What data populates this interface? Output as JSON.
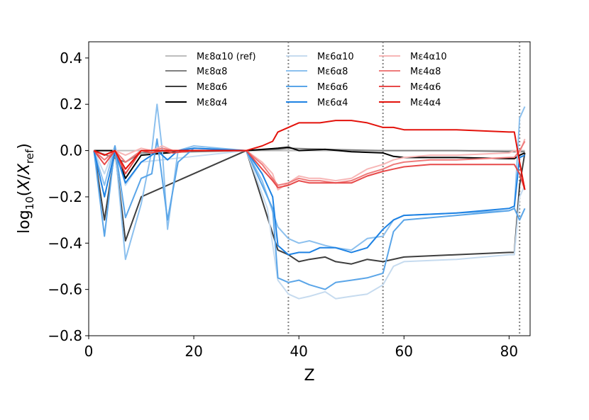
{
  "chart_data": {
    "type": "line",
    "xlabel": "Z",
    "ylabel_parts": [
      "log",
      "10",
      "(",
      "X",
      "/",
      "X",
      "ref",
      ")"
    ],
    "xlim": [
      0,
      84
    ],
    "ylim": [
      -0.8,
      0.47
    ],
    "xticks": [
      0,
      20,
      40,
      60,
      80
    ],
    "xtick_labels": [
      "0",
      "20",
      "40",
      "60",
      "80"
    ],
    "yticks": [
      0.4,
      0.2,
      0.0,
      -0.2,
      -0.4,
      -0.6,
      -0.8
    ],
    "ytick_labels": [
      "0.4",
      "0.2",
      "0.0",
      "−0.2",
      "−0.4",
      "−0.6",
      "−0.8"
    ],
    "vlines": [
      38,
      56,
      82
    ],
    "legend_location": "top",
    "series": [
      {
        "name": "Mε8α10 (ref)",
        "color": "#bdbdbd",
        "x": [
          1,
          35,
          38,
          56,
          82,
          83
        ],
        "y": [
          0.0,
          0.0,
          0.0,
          0.0,
          0.0,
          0.0
        ]
      },
      {
        "name": "Mε8α8",
        "color": "#808080",
        "x": [
          1,
          7,
          10,
          30,
          36,
          38,
          45,
          56,
          70,
          81,
          83
        ],
        "y": [
          0.0,
          -0.05,
          -0.01,
          0.0,
          0.005,
          0.01,
          0.005,
          0.0,
          0.0,
          -0.005,
          -0.005
        ]
      },
      {
        "name": "Mε8α6",
        "color": "#3f3f3f",
        "x": [
          1,
          3,
          5,
          7,
          10,
          30,
          36,
          38,
          40,
          42,
          45,
          47,
          50,
          53,
          56,
          60,
          70,
          80,
          81,
          82,
          83
        ],
        "y": [
          0.0,
          -0.3,
          0.0,
          -0.39,
          -0.2,
          0.0,
          -0.43,
          -0.45,
          -0.48,
          -0.47,
          -0.46,
          -0.48,
          -0.49,
          -0.47,
          -0.48,
          -0.46,
          -0.45,
          -0.44,
          -0.44,
          -0.15,
          -0.01
        ]
      },
      {
        "name": "Mε8α4",
        "color": "#000000",
        "x": [
          1,
          5,
          7,
          10,
          20,
          30,
          36,
          38,
          40,
          45,
          50,
          56,
          58,
          60,
          70,
          80,
          81,
          82,
          83
        ],
        "y": [
          0.0,
          0.0,
          -0.12,
          -0.02,
          0.0,
          0.0,
          0.01,
          0.015,
          0.0,
          0.005,
          -0.005,
          -0.01,
          -0.025,
          -0.03,
          -0.03,
          -0.035,
          -0.035,
          -0.02,
          -0.01
        ]
      },
      {
        "name": "Mε6α10",
        "color": "#c6dbef",
        "x": [
          1,
          3,
          5,
          7,
          10,
          30,
          34,
          36,
          37,
          38,
          40,
          42,
          45,
          47,
          50,
          53,
          56,
          58,
          60,
          70,
          80,
          81,
          82,
          83
        ],
        "y": [
          0.0,
          -0.1,
          0.02,
          -0.15,
          -0.05,
          0.0,
          -0.25,
          -0.56,
          -0.59,
          -0.62,
          -0.64,
          -0.63,
          -0.61,
          -0.64,
          -0.63,
          -0.62,
          -0.58,
          -0.5,
          -0.48,
          -0.47,
          -0.45,
          -0.45,
          -0.2,
          -0.15
        ]
      },
      {
        "name": "Mε6α8",
        "color": "#8cc0ee",
        "x": [
          1,
          3,
          5,
          7,
          10,
          12,
          13,
          14,
          15,
          17,
          20,
          30,
          33,
          36,
          38,
          40,
          42,
          45,
          47,
          50,
          53,
          56,
          58,
          60,
          70,
          80,
          81,
          82,
          83
        ],
        "y": [
          0.0,
          -0.15,
          0.02,
          -0.47,
          -0.23,
          0.0,
          0.2,
          0.0,
          -0.34,
          0.0,
          0.02,
          0.0,
          -0.13,
          -0.33,
          -0.38,
          -0.4,
          -0.39,
          -0.41,
          -0.42,
          -0.43,
          -0.38,
          -0.37,
          -0.3,
          -0.28,
          -0.27,
          -0.26,
          -0.25,
          0.14,
          0.19
        ]
      },
      {
        "name": "Mε6α6",
        "color": "#5aa5e8",
        "x": [
          1,
          3,
          5,
          7,
          10,
          12,
          13,
          15,
          17,
          20,
          30,
          33,
          35,
          36,
          37,
          38,
          40,
          42,
          45,
          47,
          50,
          53,
          56,
          58,
          60,
          70,
          80,
          81,
          82,
          83
        ],
        "y": [
          0.0,
          -0.37,
          0.02,
          -0.29,
          -0.12,
          -0.1,
          0.05,
          -0.3,
          -0.05,
          0.01,
          0.0,
          -0.15,
          -0.25,
          -0.55,
          -0.56,
          -0.57,
          -0.56,
          -0.58,
          -0.6,
          -0.57,
          -0.56,
          -0.55,
          -0.53,
          -0.35,
          -0.3,
          -0.28,
          -0.26,
          -0.25,
          -0.3,
          -0.25
        ]
      },
      {
        "name": "Mε6α4",
        "color": "#1e82e3",
        "x": [
          1,
          3,
          5,
          7,
          10,
          12,
          13,
          15,
          17,
          20,
          30,
          33,
          35,
          36,
          38,
          40,
          42,
          44,
          47,
          50,
          53,
          56,
          58,
          60,
          70,
          80,
          81,
          82,
          83
        ],
        "y": [
          0.0,
          -0.2,
          0.0,
          -0.14,
          -0.05,
          -0.02,
          0.0,
          -0.04,
          0.0,
          0.01,
          0.0,
          -0.1,
          -0.2,
          -0.41,
          -0.45,
          -0.44,
          -0.44,
          -0.42,
          -0.42,
          -0.44,
          -0.42,
          -0.34,
          -0.3,
          -0.28,
          -0.27,
          -0.25,
          -0.24,
          -0.03,
          -0.02
        ]
      },
      {
        "name": "Mε4α10",
        "color": "#f7b6b6",
        "x": [
          1,
          3,
          5,
          7,
          10,
          12,
          14,
          16,
          20,
          30,
          33,
          35,
          36,
          38,
          40,
          42,
          44,
          47,
          50,
          53,
          56,
          58,
          60,
          65,
          70,
          80,
          81,
          82,
          83
        ],
        "y": [
          0.0,
          -0.02,
          0.0,
          -0.02,
          0.01,
          0.0,
          0.02,
          0.0,
          0.0,
          0.0,
          -0.05,
          -0.1,
          -0.17,
          -0.14,
          -0.11,
          -0.12,
          -0.12,
          -0.13,
          -0.12,
          -0.08,
          -0.06,
          -0.04,
          -0.03,
          -0.02,
          -0.02,
          -0.01,
          0.0,
          -0.01,
          0.05
        ]
      },
      {
        "name": "Mε4α8",
        "color": "#ee7b7b",
        "x": [
          1,
          3,
          5,
          7,
          10,
          12,
          14,
          16,
          20,
          30,
          33,
          35,
          36,
          38,
          40,
          42,
          44,
          47,
          50,
          53,
          56,
          58,
          60,
          65,
          70,
          80,
          81,
          82,
          83
        ],
        "y": [
          0.0,
          -0.04,
          0.0,
          -0.05,
          0.0,
          0.0,
          0.01,
          0.0,
          0.0,
          0.0,
          -0.06,
          -0.12,
          -0.15,
          -0.14,
          -0.12,
          -0.13,
          -0.13,
          -0.14,
          -0.13,
          -0.1,
          -0.08,
          -0.06,
          -0.05,
          -0.04,
          -0.04,
          -0.03,
          -0.03,
          0.0,
          0.04
        ]
      },
      {
        "name": "Mε4α6",
        "color": "#e74a4a",
        "x": [
          1,
          3,
          5,
          7,
          10,
          12,
          14,
          16,
          20,
          30,
          33,
          35,
          36,
          38,
          40,
          42,
          44,
          47,
          50,
          53,
          56,
          58,
          60,
          65,
          70,
          80,
          81,
          82,
          83
        ],
        "y": [
          0.0,
          -0.06,
          0.0,
          -0.1,
          0.0,
          -0.01,
          0.0,
          -0.01,
          0.0,
          0.0,
          -0.08,
          -0.13,
          -0.16,
          -0.15,
          -0.13,
          -0.14,
          -0.14,
          -0.14,
          -0.14,
          -0.11,
          -0.09,
          -0.08,
          -0.07,
          -0.06,
          -0.06,
          -0.06,
          -0.06,
          -0.1,
          -0.17
        ]
      },
      {
        "name": "Mε4α4",
        "color": "#e3120b",
        "x": [
          1,
          3,
          5,
          7,
          10,
          20,
          30,
          33,
          35,
          36,
          38,
          40,
          42,
          44,
          47,
          50,
          53,
          56,
          58,
          60,
          70,
          80,
          81,
          82,
          83
        ],
        "y": [
          0.0,
          -0.02,
          0.0,
          -0.08,
          0.0,
          0.0,
          0.0,
          0.02,
          0.04,
          0.08,
          0.1,
          0.12,
          0.12,
          0.12,
          0.13,
          0.13,
          0.12,
          0.1,
          0.1,
          0.09,
          0.09,
          0.08,
          0.08,
          -0.05,
          -0.17
        ]
      }
    ]
  }
}
